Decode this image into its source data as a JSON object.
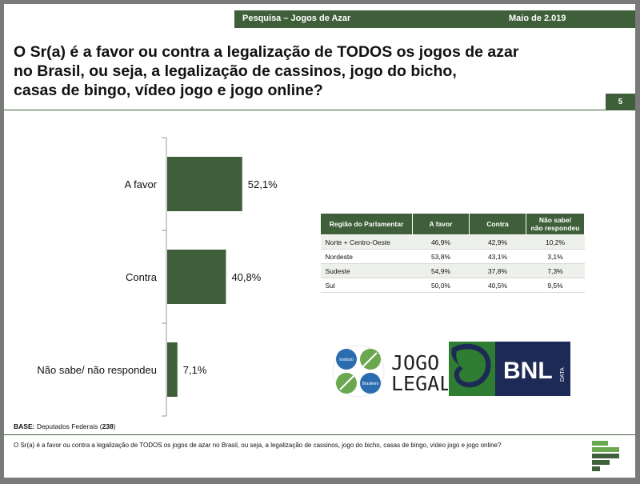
{
  "header": {
    "survey": "Pesquisa – Jogos de Azar",
    "date": "Maio de 2.019"
  },
  "title": "O Sr(a) é a favor ou contra a legalização de TODOS os jogos de azar no Brasil, ou seja, a legalização de cassinos, jogo do bicho, casas de bingo, vídeo jogo e jogo online?",
  "title_lines": [
    "O Sr(a) é a favor ou contra a legalização de TODOS os jogos de azar",
    "no Brasil, ou seja, a legalização de cassinos, jogo do bicho,",
    "casas de bingo, vídeo jogo e jogo online?"
  ],
  "page_number": "5",
  "chart_data": {
    "type": "bar",
    "orientation": "horizontal",
    "categories": [
      "A favor",
      "Contra",
      "Não sabe/ não respondeu"
    ],
    "values": [
      52.1,
      40.8,
      7.1
    ],
    "value_labels": [
      "52,1%",
      "40,8%",
      "7,1%"
    ],
    "value_unit": "%",
    "bar_color": "#3f5f3a",
    "xlim": [
      0,
      100
    ]
  },
  "table": {
    "headers": [
      "Região do Parlamentar",
      "A favor",
      "Contra",
      "Não sabe/\nnão respondeu"
    ],
    "header_lines": [
      [
        "Região do Parlamentar"
      ],
      [
        "A favor"
      ],
      [
        "Contra"
      ],
      [
        "Não sabe/",
        "não respondeu"
      ]
    ],
    "rows": [
      [
        "Norte + Centro-Oeste",
        "46,9%",
        "42,9%",
        "10,2%"
      ],
      [
        "Nordeste",
        "53,8%",
        "43,1%",
        "3,1%"
      ],
      [
        "Sudeste",
        "54,9%",
        "37,8%",
        "7,3%"
      ],
      [
        "Sul",
        "50,0%",
        "40,5%",
        "9,5%"
      ]
    ]
  },
  "logos": {
    "jogo_legal": {
      "line1": "JOGO",
      "line2": "LEGAL",
      "badge_top": "Instituto",
      "badge_bottom": "Brasileiro"
    },
    "bnl": {
      "text": "BNL",
      "sub": "DATA"
    }
  },
  "base": {
    "label": "BASE:",
    "text": " Deputados Federais (",
    "count": "238",
    "close": ")"
  },
  "footer_question": "O Sr(a) é a favor ou contra a legalização de TODOS os jogos de azar no Brasil, ou seja, a legalização de cassinos, jogo do bicho, casas de bingo, vídeo jogo e jogo online?",
  "colors": {
    "brand_green": "#3f5f3a",
    "bnl_navy": "#1d2a55",
    "bnl_green": "#2e7d32"
  }
}
